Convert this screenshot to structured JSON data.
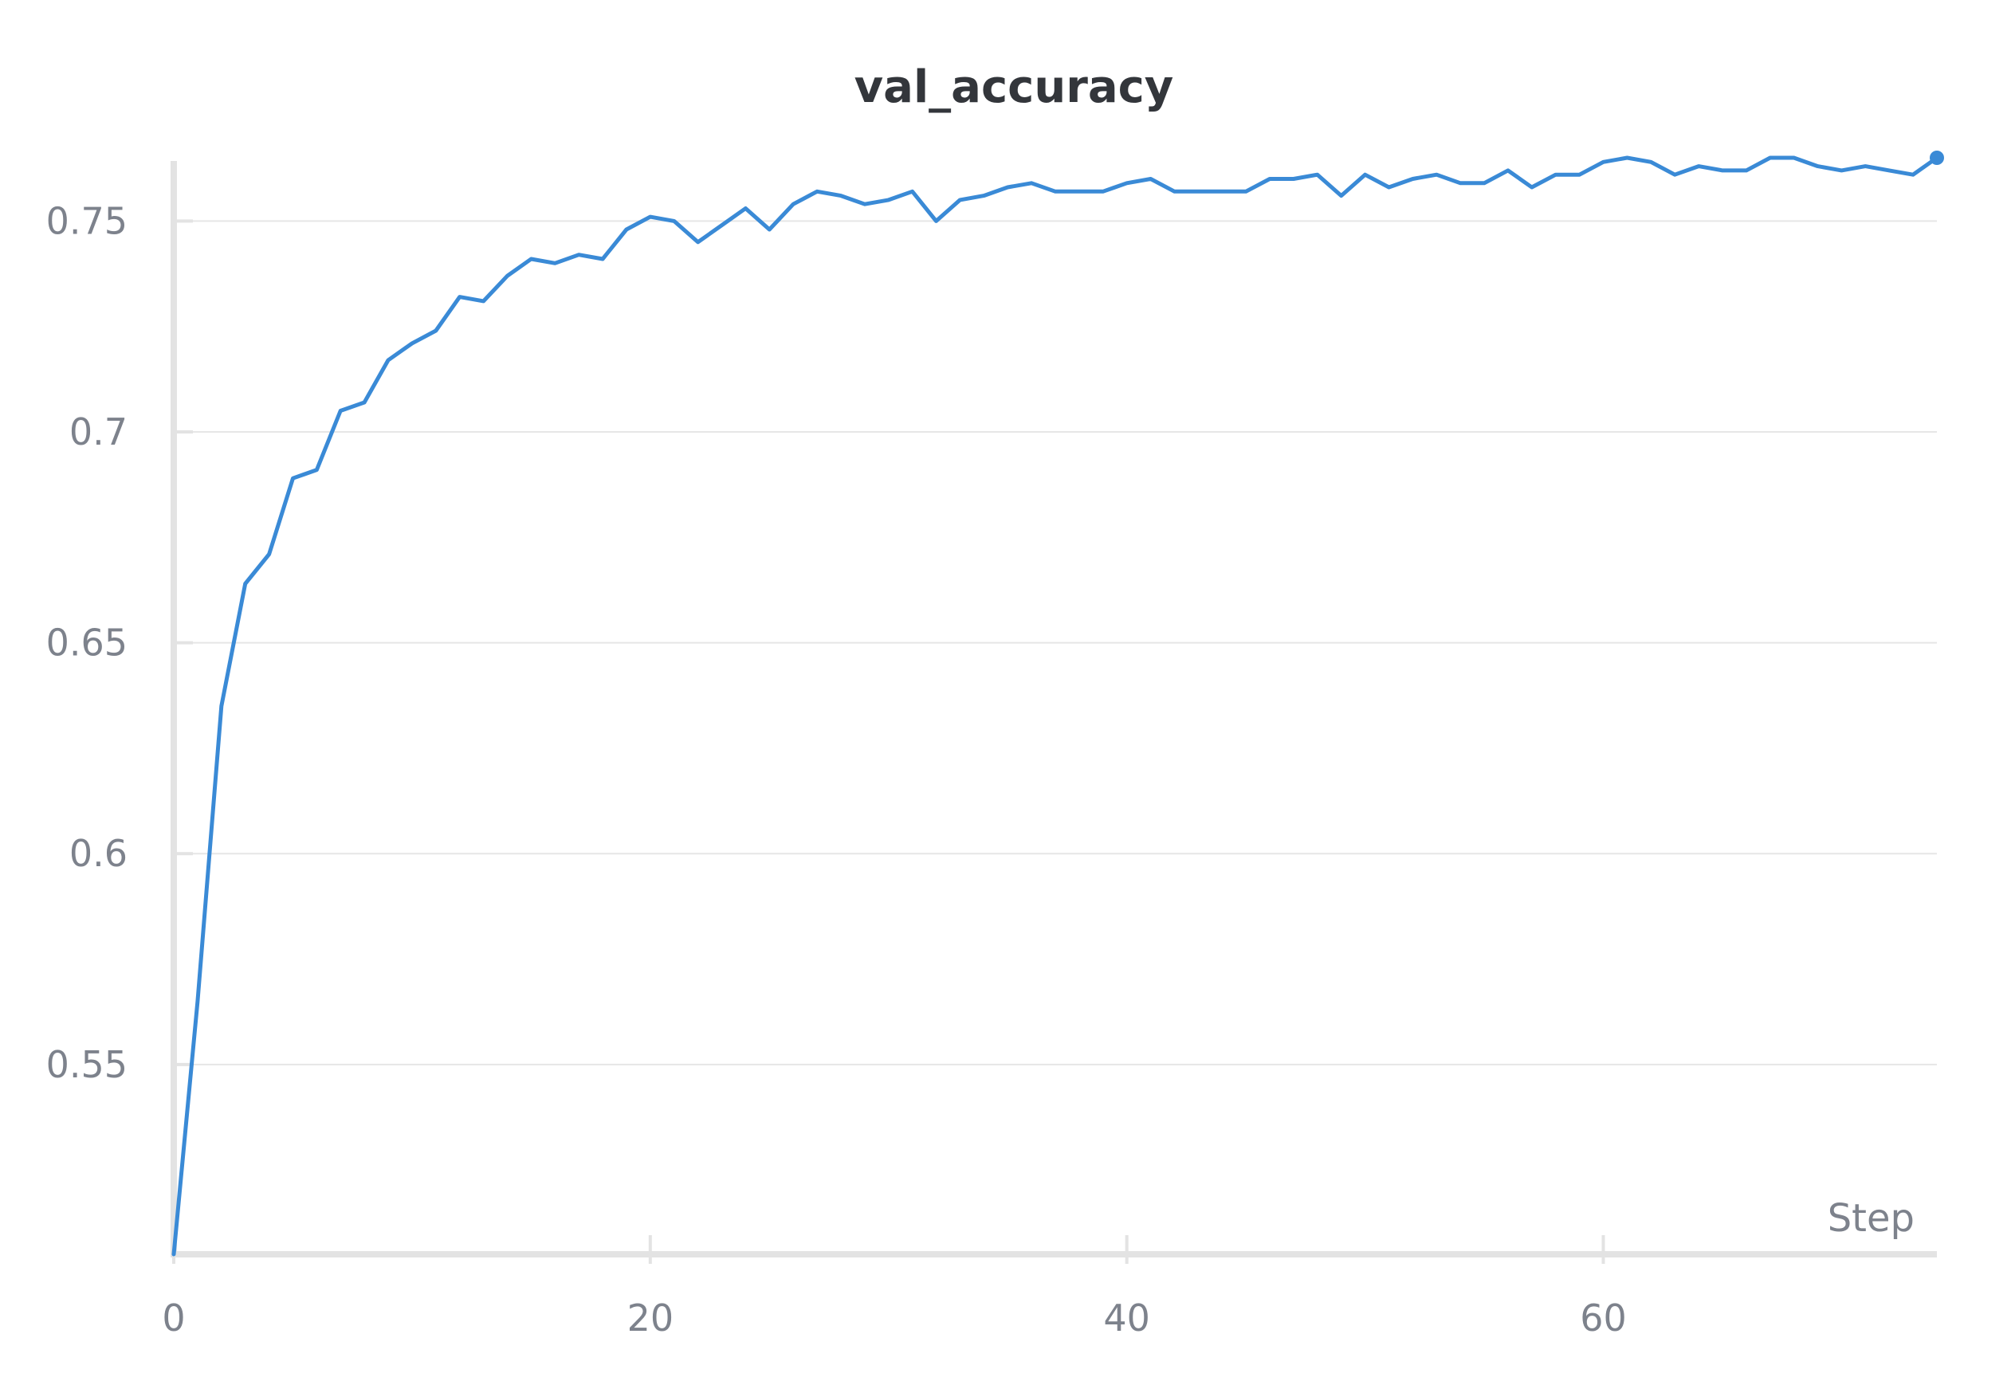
{
  "chart_data": {
    "type": "line",
    "title": "val_accuracy",
    "xlabel": "Step",
    "ylabel": "",
    "xlim": [
      0,
      74
    ],
    "ylim": [
      0.505,
      0.765
    ],
    "x_ticks": [
      0,
      20,
      40,
      60
    ],
    "y_ticks": [
      0.55,
      0.6,
      0.65,
      0.7,
      0.75
    ],
    "y_tick_labels": [
      "0.55",
      "0.6",
      "0.65",
      "0.7",
      "0.75"
    ],
    "x_tick_labels": [
      "0",
      "20",
      "40",
      "60"
    ],
    "grid": true,
    "color": "#3a8ad6",
    "series": [
      {
        "x": [
          0,
          1,
          2,
          3,
          4,
          5,
          6,
          7,
          8,
          9,
          10,
          11,
          12,
          13,
          14,
          15,
          16,
          17,
          18,
          19,
          20,
          21,
          22,
          23,
          24,
          25,
          26,
          27,
          28,
          29,
          30,
          31,
          32,
          33,
          34,
          35,
          36,
          37,
          38,
          39,
          40,
          41,
          42,
          43,
          44,
          45,
          46,
          47,
          48,
          49,
          50,
          51,
          52,
          53,
          54,
          55,
          56,
          57,
          58,
          59,
          60,
          61,
          62,
          63,
          64,
          65,
          66,
          67,
          68,
          69,
          70,
          71,
          72,
          73,
          74
        ],
        "values": [
          0.505,
          0.565,
          0.635,
          0.664,
          0.671,
          0.689,
          0.691,
          0.705,
          0.707,
          0.717,
          0.721,
          0.724,
          0.732,
          0.731,
          0.737,
          0.741,
          0.74,
          0.742,
          0.741,
          0.748,
          0.751,
          0.75,
          0.745,
          0.749,
          0.753,
          0.748,
          0.754,
          0.757,
          0.756,
          0.754,
          0.755,
          0.757,
          0.75,
          0.755,
          0.756,
          0.758,
          0.759,
          0.757,
          0.757,
          0.757,
          0.759,
          0.76,
          0.757,
          0.757,
          0.757,
          0.757,
          0.76,
          0.76,
          0.761,
          0.756,
          0.761,
          0.758,
          0.76,
          0.761,
          0.759,
          0.759,
          0.762,
          0.758,
          0.761,
          0.761,
          0.764,
          0.765,
          0.764,
          0.761,
          0.763,
          0.762,
          0.762,
          0.765,
          0.765,
          0.763,
          0.762,
          0.763,
          0.762,
          0.761,
          0.765
        ]
      }
    ]
  }
}
